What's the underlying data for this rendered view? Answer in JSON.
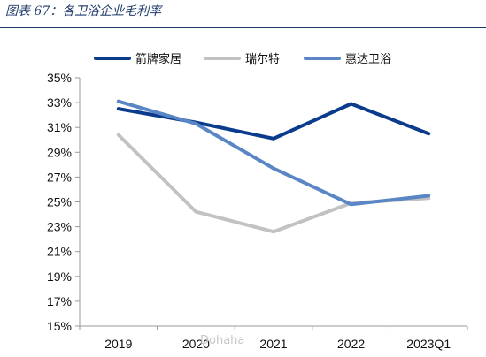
{
  "header": {
    "title": "图表 67：各卫浴企业毛利率"
  },
  "watermark": {
    "text": "Dohaha"
  },
  "chart_data": {
    "type": "line",
    "title": "",
    "xlabel": "",
    "ylabel": "",
    "categories": [
      "2019",
      "2020",
      "2021",
      "2022",
      "2023Q1"
    ],
    "y_ticks": [
      "15%",
      "17%",
      "19%",
      "21%",
      "23%",
      "25%",
      "27%",
      "29%",
      "31%",
      "33%",
      "35%"
    ],
    "ylim": [
      15,
      35
    ],
    "grid": false,
    "legend_position": "top",
    "series": [
      {
        "name": "箭牌家居",
        "color": "#0b3c8c",
        "values": [
          32.5,
          31.4,
          30.1,
          32.9,
          30.5
        ]
      },
      {
        "name": "瑞尔特",
        "color": "#c2c2c2",
        "values": [
          30.4,
          24.2,
          22.6,
          24.9,
          25.3
        ]
      },
      {
        "name": "惠达卫浴",
        "color": "#5a86c5",
        "values": [
          33.1,
          31.3,
          27.7,
          24.8,
          25.5
        ]
      }
    ]
  }
}
